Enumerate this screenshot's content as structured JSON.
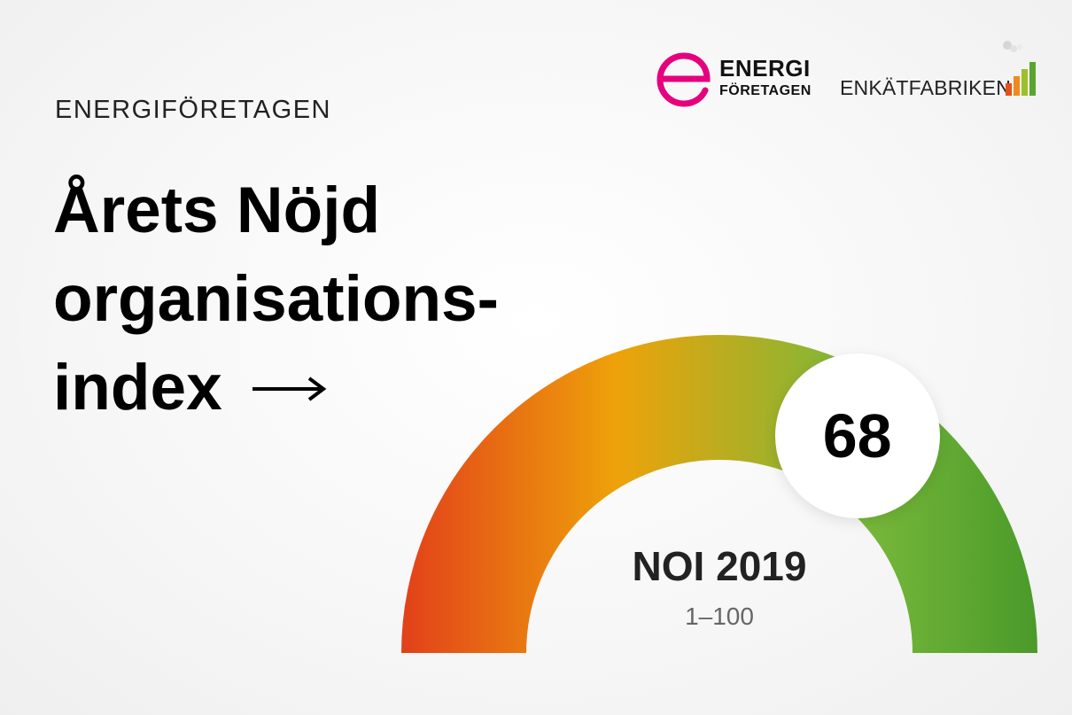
{
  "kicker": "ENERGIFÖRETAGEN",
  "headline": {
    "line1": "Årets Nöjd",
    "line2": "organisations-",
    "line3": "index"
  },
  "logos": {
    "energi": {
      "word1": "ENERGI",
      "word2": "FÖRETAGEN",
      "color": "#e6007e"
    },
    "enkat": {
      "word": "ENKÄTFABRIKEN"
    }
  },
  "gauge": {
    "score": "68",
    "score_value": 68,
    "scale_max": 100,
    "title": "NOI 2019",
    "range": "1–100",
    "colors": [
      "#e2401a",
      "#eea20a",
      "#79b93b",
      "#4a9a2a"
    ]
  }
}
